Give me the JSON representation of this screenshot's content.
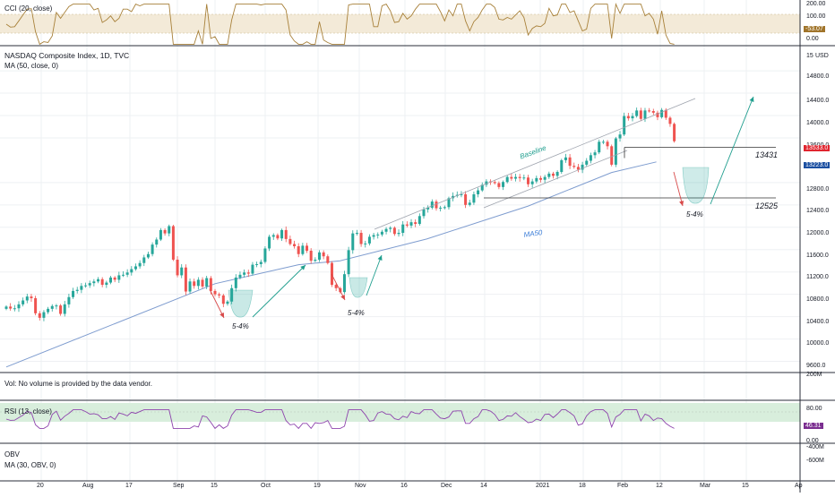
{
  "colors": {
    "up": "#26a69a",
    "down": "#ef5350",
    "ma": "#7e9ccf",
    "cci": "#a8813a",
    "rsi": "#8e44ad",
    "trend_up": "#1f9e8e",
    "trend_down": "#d84a4a",
    "level_red": "#e0242e",
    "level_blue": "#1b4fa1",
    "rsi_tag": "#7b2e90",
    "cci_tag": "#a0742a",
    "rsi_band": "#d8eedc",
    "cci_band": "#f3ead8"
  },
  "cci_panel": {
    "title": "CCI (20, close)",
    "ticks": [
      "200.00",
      "100.00",
      "0.00"
    ],
    "last_value": "-53.07"
  },
  "main_panel": {
    "title": "NASDAQ Composite Index, 1D, TVC",
    "ma_legend": "MA (50, close, 0)",
    "currency": "USD",
    "axis_top_label": "15",
    "price_ticks": [
      "14800.0",
      "14400.0",
      "14000.0",
      "13600.0",
      "12800.0",
      "12400.0",
      "12000.0",
      "11600.0",
      "11200.0",
      "10800.0",
      "10400.0",
      "10000.0",
      "9600.0"
    ],
    "last_price_tag": "13533.0",
    "ma_tag": "13223.0",
    "annotations": {
      "baseline": "Baseline",
      "ma50": "MA50",
      "level_high": "13431",
      "level_low": "12525",
      "drop_1": "5-4%",
      "drop_2": "5-4%",
      "drop_3": "5-4%"
    }
  },
  "vol_panel": {
    "title": "Vol: No volume is provided by the data vendor.",
    "tick": "200M"
  },
  "rsi_panel": {
    "title": "RSI (13, close)",
    "ticks": [
      "80.00",
      "0.00"
    ],
    "last_value": "46.31"
  },
  "obv_panel": {
    "title": "OBV",
    "ma_legend": "MA (30, OBV, 0)",
    "ticks": [
      "-400M",
      "-600M"
    ]
  },
  "time_axis": [
    "20",
    "Aug",
    "17",
    "Sep",
    "15",
    "Oct",
    "19",
    "Nov",
    "16",
    "Dec",
    "14",
    "2021",
    "18",
    "Feb",
    "12",
    "Mar",
    "15",
    "Ap"
  ],
  "chart_data": {
    "type": "candlestick",
    "title": "NASDAQ Composite Index, 1D, TVC",
    "ylabel": "USD",
    "ylim": [
      9400,
      15250
    ],
    "grid": true,
    "legend": "top-left",
    "period": "2020-07-13 to 2021-02-19 (daily)",
    "closes": [
      10580,
      10545,
      10550,
      10620,
      10690,
      10760,
      10730,
      10460,
      10380,
      10480,
      10540,
      10590,
      10600,
      10450,
      10620,
      10750,
      10860,
      10880,
      10950,
      10960,
      11000,
      11030,
      11070,
      10970,
      11010,
      11100,
      11060,
      11140,
      11150,
      11190,
      11250,
      11300,
      11360,
      11460,
      11520,
      11690,
      11780,
      11950,
      11890,
      12020,
      11420,
      11140,
      11280,
      10850,
      11030,
      10950,
      11060,
      10940,
      11090,
      10860,
      10800,
      10780,
      10630,
      10670,
      10910,
      11100,
      11150,
      11190,
      11170,
      11330,
      11340,
      11380,
      11620,
      11830,
      11860,
      11800,
      11950,
      11790,
      11700,
      11660,
      11520,
      11670,
      11580,
      11400,
      11420,
      11550,
      11480,
      11360,
      10970,
      10910,
      10840,
      11160,
      11590,
      11890,
      11900,
      11700,
      11710,
      11830,
      11860,
      11870,
      11920,
      11970,
      11990,
      11880,
      11900,
      12050,
      12030,
      12090,
      12060,
      12200,
      12320,
      12350,
      12460,
      12340,
      12350,
      12360,
      12520,
      12560,
      12580,
      12590,
      12400,
      12440,
      12590,
      12660,
      12760,
      12820,
      12810,
      12790,
      12720,
      12810,
      12900,
      12870,
      12900,
      12880,
      12890,
      12770,
      12820,
      12880,
      12850,
      12900,
      12960,
      12920,
      12990,
      13200,
      13250,
      13100,
      13080,
      13030,
      13120,
      13190,
      13290,
      13340,
      13530,
      13530,
      13450,
      13120,
      13590,
      13660,
      13990,
      13950,
      13990,
      14090,
      13940,
      14090,
      14080,
      14050,
      13970,
      14100,
      13960,
      13850,
      13540
    ],
    "ma50_points": [
      {
        "x": "2020-07-13",
        "y": 9500
      },
      {
        "x": "2020-09-21",
        "y": 10990
      },
      {
        "x": "2020-10-19",
        "y": 11330
      },
      {
        "x": "2020-11-02",
        "y": 11400
      },
      {
        "x": "2020-12-01",
        "y": 11790
      },
      {
        "x": "2021-01-04",
        "y": 12380
      },
      {
        "x": "2021-02-01",
        "y": 12980
      },
      {
        "x": "2021-02-16",
        "y": 13170
      }
    ]
  }
}
